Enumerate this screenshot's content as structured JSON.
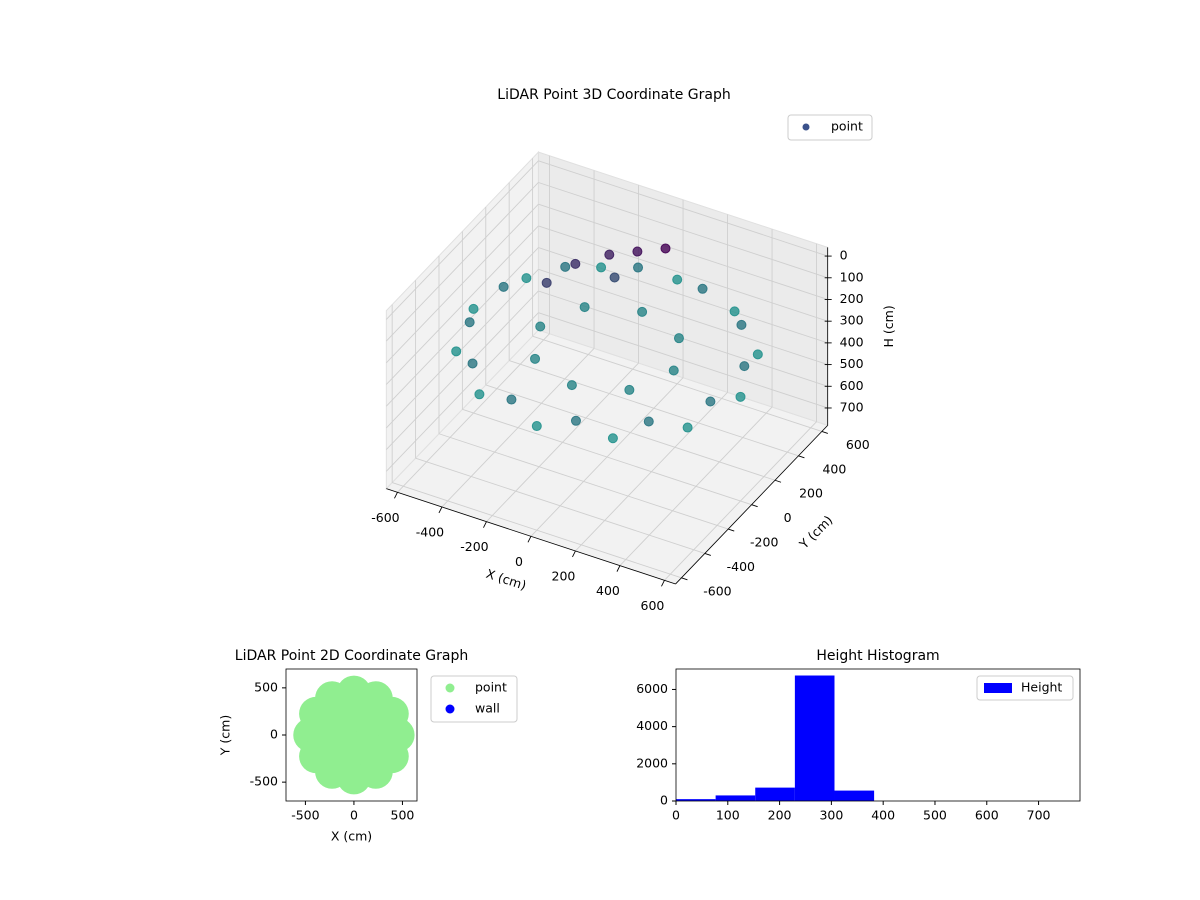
{
  "chart_data": [
    {
      "type": "scatter3d",
      "title": "LiDAR Point 3D Coordinate Graph",
      "xlabel": "X (cm)",
      "ylabel": "Y (cm)",
      "zlabel": "H (cm)",
      "xlim": [
        -650,
        650
      ],
      "ylim": [
        -650,
        650
      ],
      "zlim": [
        780,
        -40
      ],
      "xticks": [
        -600,
        -400,
        -200,
        0,
        200,
        400,
        600
      ],
      "yticks": [
        -600,
        -400,
        -200,
        0,
        200,
        400,
        600
      ],
      "zticks": [
        0,
        100,
        200,
        300,
        400,
        500,
        600,
        700
      ],
      "legend": "upper right",
      "series": [
        {
          "name": "point",
          "color": "#3b528b",
          "x": [
            600,
            520,
            300,
            0,
            -300,
            -520,
            -600,
            -520,
            -300,
            0,
            300,
            520,
            541,
            396,
            145,
            -145,
            -396,
            -541,
            -541,
            -396,
            -145,
            145,
            396,
            541,
            300,
            212,
            0,
            -212,
            -300,
            -212,
            0,
            212,
            -100,
            -200,
            -300,
            -350,
            0,
            -150
          ],
          "y": [
            0,
            300,
            520,
            600,
            520,
            300,
            0,
            -300,
            -520,
            -600,
            -520,
            -300,
            145,
            396,
            541,
            541,
            396,
            145,
            -145,
            -396,
            -541,
            -541,
            -396,
            -145,
            0,
            212,
            300,
            212,
            0,
            -212,
            -300,
            -212,
            450,
            400,
            300,
            150,
            500,
            350
          ],
          "z": [
            300,
            300,
            300,
            300,
            300,
            300,
            300,
            300,
            300,
            300,
            300,
            300,
            260,
            260,
            260,
            260,
            260,
            260,
            260,
            260,
            260,
            260,
            260,
            260,
            280,
            280,
            280,
            280,
            280,
            280,
            280,
            280,
            120,
            140,
            160,
            180,
            100,
            200
          ]
        }
      ]
    },
    {
      "type": "scatter",
      "title": "LiDAR Point 2D Coordinate Graph",
      "xlabel": "X (cm)",
      "ylabel": "Y (cm)",
      "xlim": [
        -700,
        650
      ],
      "ylim": [
        -700,
        700
      ],
      "xticks": [
        -500,
        0,
        500
      ],
      "yticks": [
        -500,
        0,
        500
      ],
      "legend": "outside right",
      "series": [
        {
          "name": "point",
          "color": "#90ee90",
          "x": [
            0,
            450,
            390,
            225,
            0,
            -225,
            -390,
            -450,
            -390,
            -225,
            0,
            225,
            390,
            220,
            156,
            0,
            -156,
            -220,
            -156,
            0,
            156
          ],
          "y": [
            0,
            0,
            225,
            390,
            450,
            390,
            225,
            0,
            -225,
            -390,
            -450,
            -390,
            -225,
            0,
            156,
            220,
            156,
            0,
            -156,
            -220,
            -156
          ]
        },
        {
          "name": "wall",
          "color": "#0000ff",
          "x": [],
          "y": []
        }
      ]
    },
    {
      "type": "histogram",
      "title": "Height Histogram",
      "name": "Height",
      "color": "#0000ff",
      "bins": [
        0,
        76.5,
        153,
        229.5,
        306,
        382.5,
        459,
        535.5,
        612,
        688.5,
        765
      ],
      "values": [
        100,
        300,
        720,
        6750,
        560,
        0,
        0,
        0,
        0,
        0
      ],
      "xlim": [
        0,
        780
      ],
      "ylim": [
        0,
        7100
      ],
      "xticks": [
        0,
        100,
        200,
        300,
        400,
        500,
        600,
        700
      ],
      "yticks": [
        0,
        2000,
        4000,
        6000
      ],
      "legend": "upper right"
    }
  ]
}
